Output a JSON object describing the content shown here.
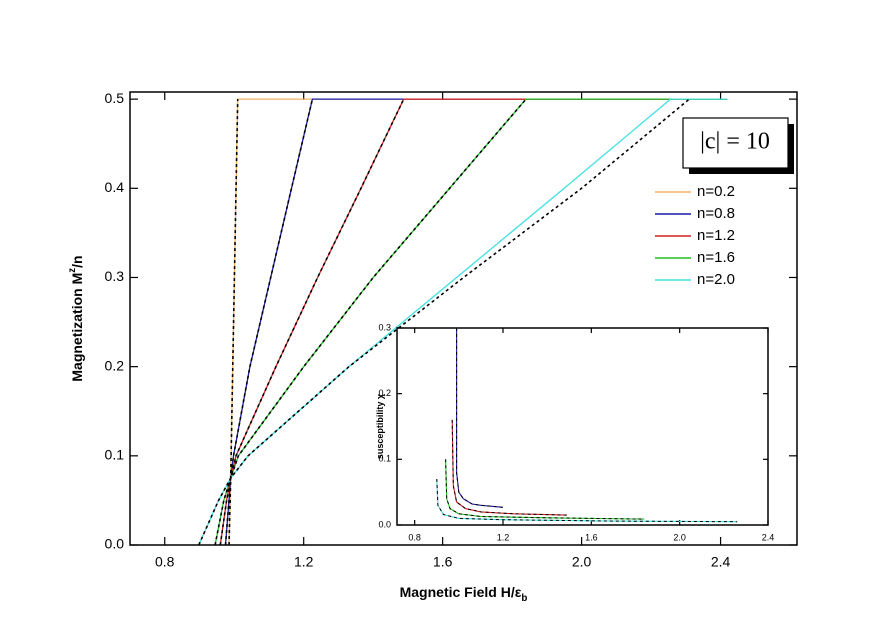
{
  "chart_data": [
    {
      "type": "line",
      "xlabel": [
        "Magnetic Field  H/ε",
        "b"
      ],
      "ylabel": [
        "Magnetization  M",
        "z",
        "/n"
      ],
      "xlim": [
        0.7,
        2.62
      ],
      "ylim": [
        0,
        0.508
      ],
      "xticks": [
        0.8,
        1.2,
        1.6,
        {
          "value": 2.0,
          "label": "2.0"
        },
        2.4
      ],
      "yticks": [
        {
          "value": 0,
          "label": "0.0"
        },
        0.1,
        0.2,
        0.3,
        0.4,
        0.5
      ],
      "legend": "right",
      "annotation": "|c| = 10",
      "series": [
        {
          "name": "n=0.2",
          "color": "#f0b060",
          "x": [
            0.985,
            0.99,
            1.01,
            2.42
          ],
          "values": [
            0,
            0.075,
            0.5,
            0.5
          ]
        },
        {
          "name": "n=0.8",
          "color": "#1a1aa8",
          "x": [
            0.975,
            0.985,
            0.99,
            0.998,
            1.045,
            1.105,
            1.165,
            1.225,
            2.42
          ],
          "values": [
            0,
            0.05,
            0.075,
            0.1,
            0.2,
            0.3,
            0.4,
            0.5,
            0.5
          ]
        },
        {
          "name": "n=1.2",
          "color": "#d42020",
          "x": [
            0.96,
            0.978,
            0.99,
            1.005,
            1.12,
            1.24,
            1.365,
            1.488,
            2.42
          ],
          "values": [
            0,
            0.05,
            0.075,
            0.1,
            0.2,
            0.3,
            0.4,
            0.5,
            0.5
          ]
        },
        {
          "name": "n=1.6",
          "color": "#20c020",
          "x": [
            0.945,
            0.97,
            0.99,
            1.012,
            1.2,
            1.4,
            1.62,
            1.84,
            2.42
          ],
          "values": [
            0,
            0.05,
            0.075,
            0.1,
            0.2,
            0.3,
            0.4,
            0.5,
            0.5
          ]
        },
        {
          "name": "n=2.0",
          "color": "#40e0e0",
          "x": [
            0.898,
            0.955,
            0.99,
            1.04,
            1.33,
            1.64,
            1.95,
            2.256,
            2.42
          ],
          "values": [
            0,
            0.05,
            0.075,
            0.1,
            0.2,
            0.3,
            0.4,
            0.5,
            0.5
          ]
        }
      ],
      "dashed": [
        {
          "color": "#000000",
          "x": [
            0.985,
            0.99,
            1.01
          ],
          "values": [
            0,
            0.075,
            0.5
          ]
        },
        {
          "color": "#000000",
          "x": [
            0.975,
            0.985,
            0.99,
            0.998,
            1.045,
            1.105,
            1.165,
            1.225
          ],
          "values": [
            0,
            0.05,
            0.075,
            0.1,
            0.2,
            0.3,
            0.4,
            0.5
          ]
        },
        {
          "color": "#000000",
          "x": [
            0.96,
            0.978,
            0.99,
            1.005,
            1.12,
            1.24,
            1.365,
            1.488
          ],
          "values": [
            0,
            0.05,
            0.075,
            0.1,
            0.2,
            0.3,
            0.4,
            0.5
          ]
        },
        {
          "color": "#000000",
          "x": [
            0.945,
            0.97,
            0.99,
            1.012,
            1.2,
            1.4,
            1.62,
            1.84
          ],
          "values": [
            0,
            0.05,
            0.075,
            0.1,
            0.2,
            0.3,
            0.4,
            0.5
          ]
        },
        {
          "color": "#000000",
          "x": [
            0.898,
            0.955,
            0.99,
            1.04,
            1.33,
            1.66,
            2.0,
            2.31
          ],
          "values": [
            0,
            0.05,
            0.075,
            0.1,
            0.2,
            0.3,
            0.4,
            0.5
          ]
        }
      ]
    },
    {
      "type": "line",
      "ylabel": [
        "susceptibility χ"
      ],
      "xlim": [
        0.72,
        2.4
      ],
      "ylim": [
        0,
        0.3
      ],
      "xticks": [
        0.8,
        1.2,
        1.6,
        {
          "value": 2.0,
          "label": "2.0"
        },
        2.4
      ],
      "yticks": [
        {
          "value": 0,
          "label": "0.0"
        },
        0.1,
        0.2,
        0.3
      ],
      "overlay_dashed": true,
      "series": [
        {
          "color": "#1a1aa8",
          "x": [
            0.99,
            0.99,
            1.0,
            1.02,
            1.06,
            1.1,
            1.2
          ],
          "values": [
            0.3,
            0.08,
            0.05,
            0.04,
            0.032,
            0.03,
            0.027
          ]
        },
        {
          "color": "#d42020",
          "x": [
            0.97,
            0.975,
            0.99,
            1.03,
            1.1,
            1.25,
            1.49
          ],
          "values": [
            0.16,
            0.06,
            0.035,
            0.025,
            0.02,
            0.017,
            0.015
          ]
        },
        {
          "color": "#20c020",
          "x": [
            0.94,
            0.945,
            0.96,
            1.0,
            1.1,
            1.4,
            1.84
          ],
          "values": [
            0.1,
            0.04,
            0.025,
            0.017,
            0.013,
            0.011,
            0.009
          ]
        },
        {
          "color": "#40e0e0",
          "x": [
            0.9,
            0.905,
            0.93,
            1.0,
            1.2,
            1.7,
            2.26
          ],
          "values": [
            0.07,
            0.03,
            0.016,
            0.01,
            0.008,
            0.006,
            0.005
          ]
        }
      ]
    }
  ]
}
